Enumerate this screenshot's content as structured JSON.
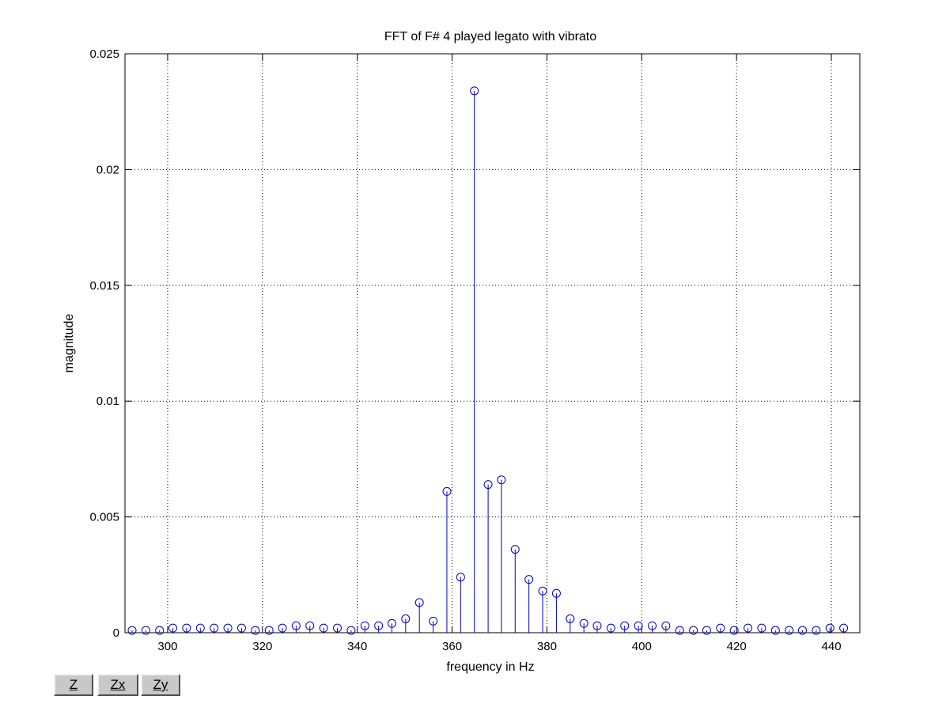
{
  "chart_data": {
    "type": "stem",
    "title": "FFT of F# 4 played legato with vibrato",
    "xlabel": "frequency in Hz",
    "ylabel": "magnitude",
    "xlim": [
      291,
      446
    ],
    "ylim": [
      0,
      0.025
    ],
    "xticks": [
      300,
      320,
      340,
      360,
      380,
      400,
      420,
      440
    ],
    "yticks": [
      0,
      0.005,
      0.01,
      0.015,
      0.02,
      0.025
    ],
    "xtick_labels": [
      "300",
      "320",
      "340",
      "360",
      "380",
      "400",
      "420",
      "440"
    ],
    "ytick_labels": [
      "0",
      "0.005",
      "0.01",
      "0.015",
      "0.02",
      "0.025"
    ],
    "grid": true,
    "series": [
      {
        "color": "#0000cc",
        "marker": "circle",
        "x": [
          292.5,
          295.4,
          298.3,
          301.1,
          304.0,
          306.9,
          309.8,
          312.7,
          315.6,
          318.5,
          321.4,
          324.2,
          327.1,
          330.0,
          332.9,
          335.8,
          338.7,
          341.6,
          344.5,
          347.3,
          350.2,
          353.1,
          356.0,
          358.9,
          361.8,
          364.7,
          367.6,
          370.4,
          373.3,
          376.2,
          379.1,
          382.0,
          384.9,
          387.8,
          390.6,
          393.5,
          396.4,
          399.3,
          402.2,
          405.1,
          408.0,
          410.9,
          413.7,
          416.6,
          419.5,
          422.4,
          425.3,
          428.2,
          431.1,
          433.9,
          436.8,
          439.7,
          442.6
        ],
        "y": [
          0.0001,
          0.0001,
          0.0001,
          0.0002,
          0.0002,
          0.0002,
          0.0002,
          0.0002,
          0.0002,
          0.0001,
          0.0001,
          0.0002,
          0.0003,
          0.0003,
          0.0002,
          0.0002,
          0.0001,
          0.0003,
          0.0003,
          0.0004,
          0.0006,
          0.0013,
          0.0005,
          0.0061,
          0.0024,
          0.0234,
          0.0064,
          0.0066,
          0.0036,
          0.0023,
          0.0018,
          0.0017,
          0.0006,
          0.0004,
          0.0003,
          0.0002,
          0.0003,
          0.0003,
          0.0003,
          0.0003,
          0.0001,
          0.0001,
          0.0001,
          0.0002,
          0.0001,
          0.0002,
          0.0002,
          0.0001,
          0.0001,
          0.0001,
          0.0001,
          0.0002,
          0.0002
        ]
      }
    ]
  },
  "toolbar": {
    "z_label": "Z",
    "zx_label": "Zx",
    "zy_label": "Zy"
  }
}
